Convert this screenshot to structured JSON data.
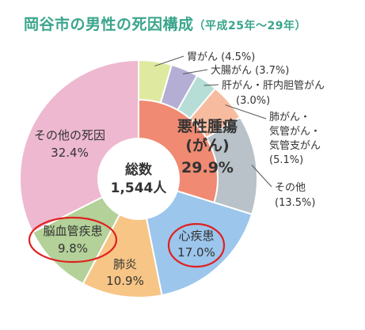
{
  "title": "岡谷市の男性の死因構成",
  "subtitle": "（平成25年〜29年）",
  "center": {
    "line1": "総数",
    "line2": "1,544人"
  },
  "chart_data": {
    "type": "pie",
    "title": "岡谷市の男性の死因構成",
    "subtitle": "（平成25年〜29年）",
    "total_label": "総数",
    "total": "1,544人",
    "slices": [
      {
        "name": "胃がん",
        "value": 4.5,
        "label": "(4.5%)",
        "color": "#dfeaa0"
      },
      {
        "name": "大腸がん",
        "value": 3.7,
        "label": "(3.7%)",
        "color": "#b4aed4"
      },
      {
        "name": "肝がん・肝内胆管がん",
        "value": 3.0,
        "label": "(3.0%)",
        "color": "#b6ddd6"
      },
      {
        "name": "肺がん・気管がん・気管支がん",
        "value": 5.1,
        "label": "(5.1%)",
        "color": "#f7bca0"
      },
      {
        "name": "その他",
        "value": 13.5,
        "label": "(13.5%)",
        "color": "#b8c2c8"
      },
      {
        "name": "心疾患",
        "value": 17.0,
        "label": "17.0%",
        "color": "#9cc6ec"
      },
      {
        "name": "肺炎",
        "value": 10.9,
        "label": "10.9%",
        "color": "#f7c585"
      },
      {
        "name": "脳血管疾患",
        "value": 9.8,
        "label": "9.8%",
        "color": "#b3d198"
      },
      {
        "name": "その他の死因",
        "value": 32.4,
        "label": "32.4%",
        "color": "#eeb8d0"
      }
    ],
    "cancer_group": {
      "name": "悪性腫瘍",
      "name2": "(がん)",
      "value": 29.9,
      "label": "29.9%",
      "color": "#f08a72"
    },
    "highlighted": [
      "心疾患",
      "脳血管疾患"
    ],
    "highlight_color": "#e02020"
  },
  "labels": {
    "stomach": {
      "line1": "胃がん (4.5%)"
    },
    "colon": {
      "line1": "大腸がん (3.7%)"
    },
    "liver": {
      "line1": "肝がん・肝内胆管がん",
      "line2": "(3.0%)"
    },
    "lung": {
      "line1": "肺がん・",
      "line2": "気管がん・",
      "line3": "気管支がん",
      "line4": "(5.1%)"
    },
    "other_cancer": {
      "line1": "その他",
      "line2": "(13.5%)"
    },
    "cancer": {
      "line1": "悪性腫瘍",
      "line2": "(がん)",
      "line3": "29.9%"
    },
    "heart": {
      "line1": "心疾患",
      "line2": "17.0%"
    },
    "pneumonia": {
      "line1": "肺炎",
      "line2": "10.9%"
    },
    "stroke": {
      "line1": "脳血管疾患",
      "line2": "9.8%"
    },
    "others": {
      "line1": "その他の死因",
      "line2": "32.4%"
    }
  }
}
